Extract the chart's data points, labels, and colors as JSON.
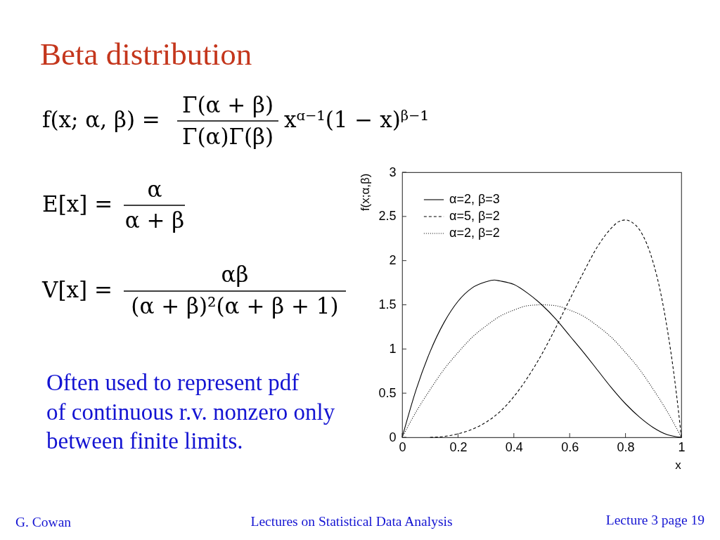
{
  "chart_data": {
    "type": "line",
    "title": "Beta distribution",
    "xlabel": "x",
    "ylabel": "f(x;α,β)",
    "series": [
      {
        "name": "α=2, β=3",
        "color": "#000000",
        "line_style": "solid",
        "x": [
          0,
          0.05,
          0.1,
          0.15,
          0.2,
          0.25,
          0.3,
          0.33,
          0.35,
          0.4,
          0.45,
          0.5,
          0.55,
          0.6,
          0.65,
          0.7,
          0.75,
          0.8,
          0.85,
          0.9,
          0.95,
          1
        ],
        "values": [
          0,
          0.54,
          0.97,
          1.3,
          1.54,
          1.69,
          1.76,
          1.78,
          1.77,
          1.73,
          1.63,
          1.5,
          1.34,
          1.15,
          0.96,
          0.76,
          0.56,
          0.38,
          0.23,
          0.11,
          0.03,
          0
        ]
      },
      {
        "name": "α=5, β=2",
        "color": "#000000",
        "line_style": "dashed",
        "x": [
          0.1,
          0.15,
          0.2,
          0.25,
          0.3,
          0.35,
          0.4,
          0.45,
          0.5,
          0.55,
          0.6,
          0.65,
          0.7,
          0.75,
          0.775,
          0.8,
          0.825,
          0.85,
          0.875,
          0.9,
          0.925,
          0.95,
          0.975,
          0.99,
          1
        ],
        "values": [
          0,
          0.01,
          0.04,
          0.09,
          0.17,
          0.29,
          0.46,
          0.68,
          0.94,
          1.24,
          1.56,
          1.87,
          2.16,
          2.37,
          2.44,
          2.46,
          2.43,
          2.35,
          2.2,
          1.97,
          1.65,
          1.22,
          0.68,
          0.29,
          0
        ]
      },
      {
        "name": "α=2, β=2",
        "color": "#000000",
        "line_style": "dotted",
        "x": [
          0,
          0.05,
          0.1,
          0.15,
          0.2,
          0.25,
          0.3,
          0.35,
          0.4,
          0.45,
          0.5,
          0.55,
          0.6,
          0.65,
          0.7,
          0.75,
          0.8,
          0.85,
          0.9,
          0.95,
          1
        ],
        "values": [
          0,
          0.29,
          0.54,
          0.77,
          0.96,
          1.13,
          1.26,
          1.37,
          1.44,
          1.49,
          1.5,
          1.49,
          1.44,
          1.37,
          1.26,
          1.13,
          0.96,
          0.77,
          0.54,
          0.29,
          0
        ]
      }
    ],
    "xlim": [
      0,
      1
    ],
    "ylim": [
      0,
      3
    ],
    "xticks": [
      0,
      0.2,
      0.4,
      0.6,
      0.8,
      1
    ],
    "yticks": [
      0,
      0.5,
      1,
      1.5,
      2,
      2.5,
      3
    ],
    "legend": "top left",
    "annotations": [
      "f(x; α, β) =",
      "Γ(α + β)",
      "Γ(α)Γ(β)",
      "xᵅ⁻¹(1 − x)ᵝ⁻¹",
      "E[x] =",
      "α",
      "α + β",
      "V[x] =",
      "αβ",
      "(α + β)²(α + β + 1)",
      "Often used to represent pdf",
      "of continuous r.v. nonzero only",
      "between finite limits.",
      "G. Cowan",
      "Lectures on Statistical Data Analysis",
      "Lecture 3 page 19"
    ]
  }
}
